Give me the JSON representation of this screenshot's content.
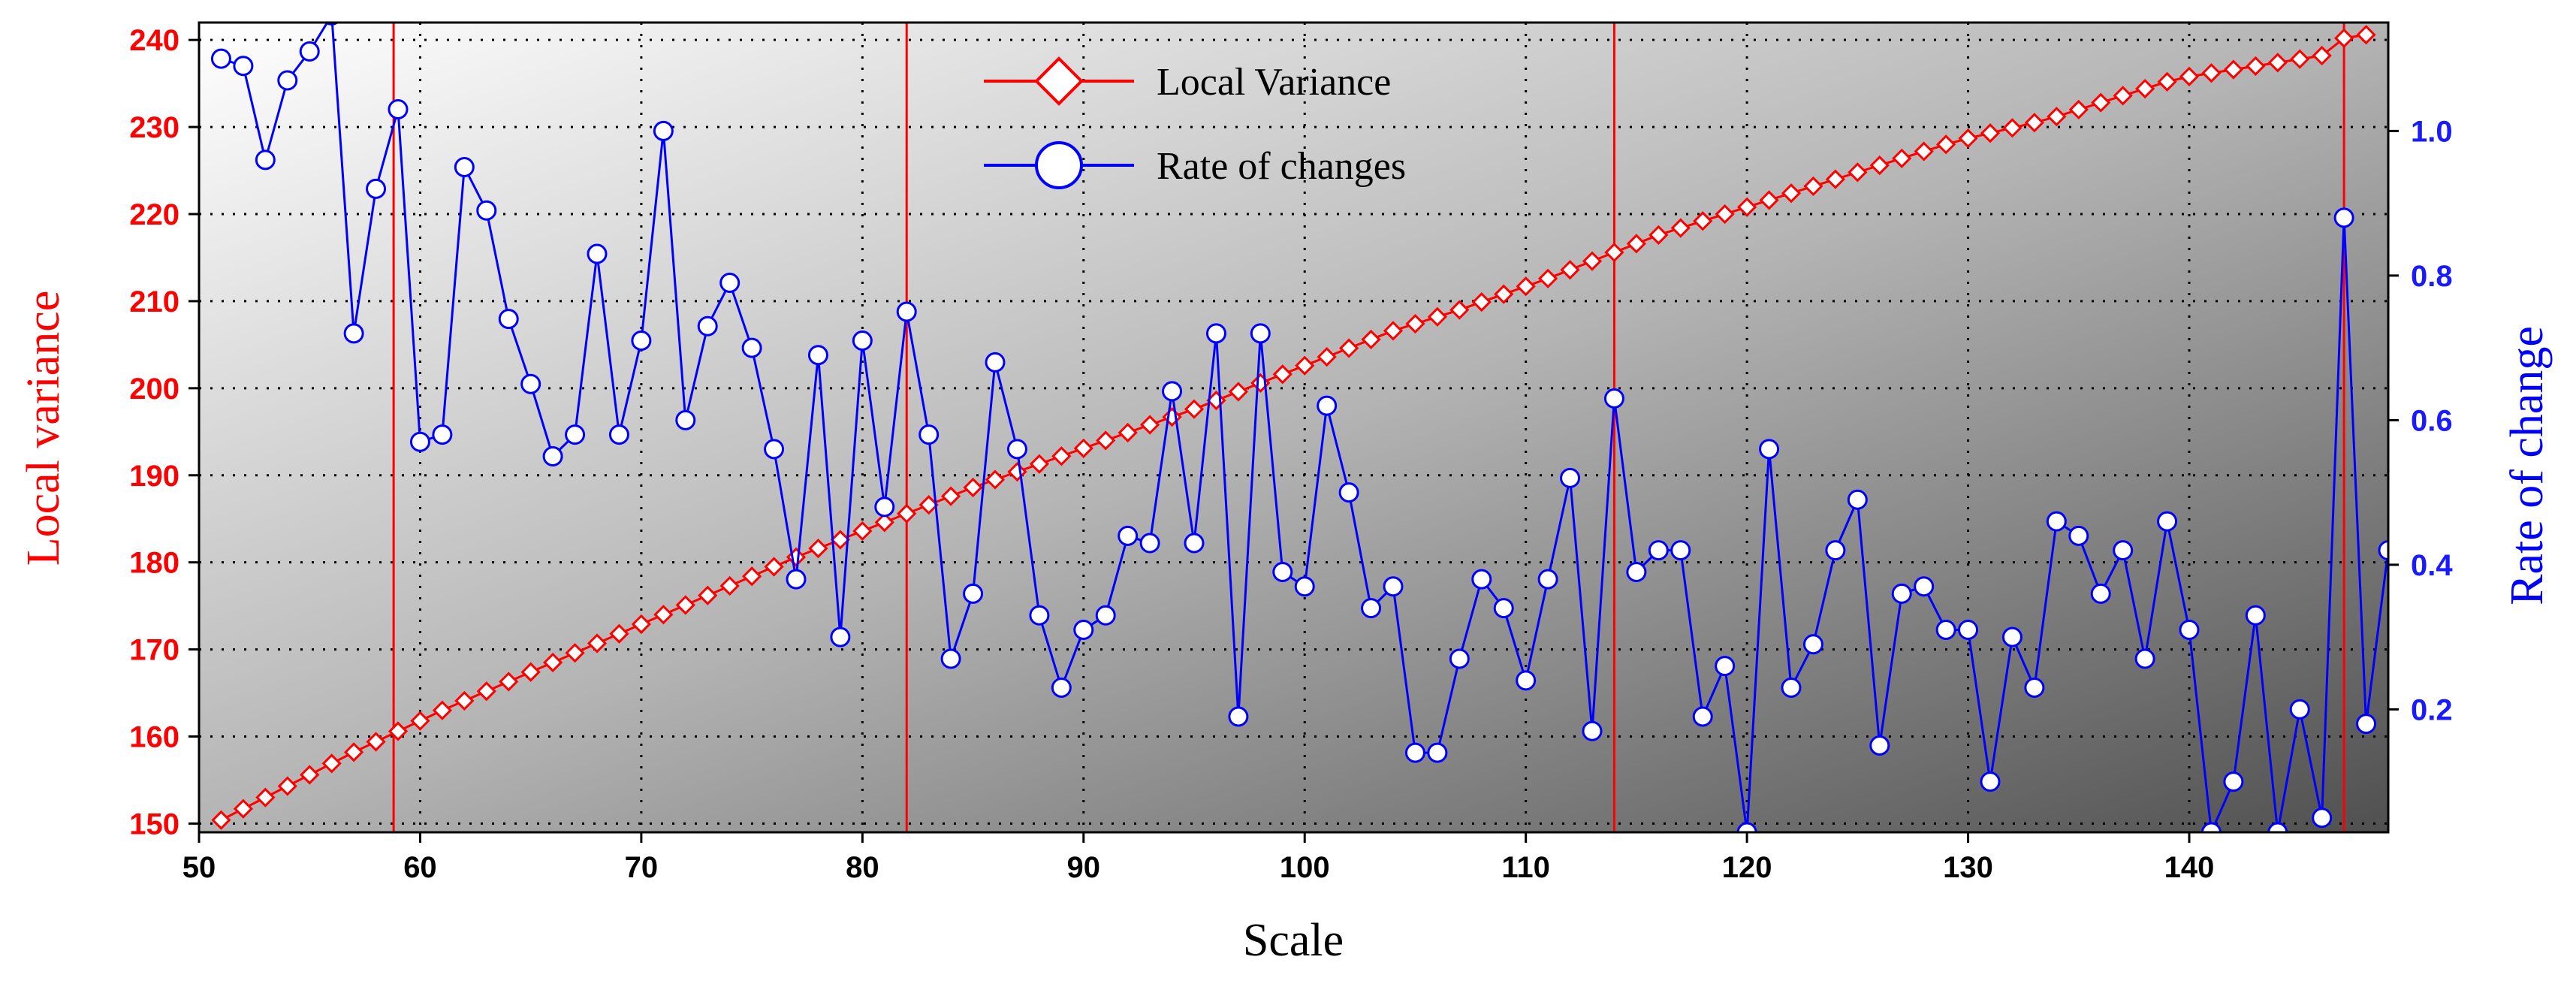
{
  "chart_data": {
    "type": "line",
    "xlabel": "Scale",
    "ylabel_left": "Local variance",
    "ylabel_right": "Rate of change",
    "xlim": [
      50,
      149
    ],
    "ylim_left": [
      149,
      242
    ],
    "ylim_right": [
      0.03,
      1.15
    ],
    "x_ticks": [
      50,
      60,
      70,
      80,
      90,
      100,
      110,
      120,
      130,
      140
    ],
    "y_left_ticks": [
      150,
      160,
      170,
      180,
      190,
      200,
      210,
      220,
      230,
      240
    ],
    "y_right_ticks": [
      0.2,
      0.4,
      0.6,
      0.8,
      1.0
    ],
    "y_right_tick_labels": [
      "0.2",
      "0.4",
      "0.6",
      "0.8",
      "1.0"
    ],
    "grid": true,
    "legend_position": "top-center",
    "vertical_lines": [
      58.8,
      82,
      114,
      147
    ],
    "colors": {
      "local_variance": "#ff0000",
      "rate_of_change": "#0000ff",
      "vertical_lines": "#ff0000"
    },
    "series": [
      {
        "name": "Local Variance",
        "axis": "left",
        "marker": "diamond",
        "x": [
          51,
          52,
          53,
          54,
          55,
          56,
          57,
          58,
          59,
          60,
          61,
          62,
          63,
          64,
          65,
          66,
          67,
          68,
          69,
          70,
          71,
          72,
          73,
          74,
          75,
          76,
          77,
          78,
          79,
          80,
          81,
          82,
          83,
          84,
          85,
          86,
          87,
          88,
          89,
          90,
          91,
          92,
          93,
          94,
          95,
          96,
          97,
          98,
          99,
          100,
          101,
          102,
          103,
          104,
          105,
          106,
          107,
          108,
          109,
          110,
          111,
          112,
          113,
          114,
          115,
          116,
          117,
          118,
          119,
          120,
          121,
          122,
          123,
          124,
          125,
          126,
          127,
          128,
          129,
          130,
          131,
          132,
          133,
          134,
          135,
          136,
          137,
          138,
          139,
          140,
          141,
          142,
          143,
          144,
          145,
          146,
          147,
          148
        ],
        "y": [
          150.4,
          151.7,
          153.0,
          154.3,
          155.6,
          156.9,
          158.2,
          159.4,
          160.6,
          161.8,
          163.0,
          164.1,
          165.2,
          166.3,
          167.4,
          168.5,
          169.6,
          170.7,
          171.8,
          172.9,
          174.0,
          175.1,
          176.2,
          177.3,
          178.4,
          179.5,
          180.6,
          181.6,
          182.6,
          183.6,
          184.6,
          185.6,
          186.6,
          187.6,
          188.6,
          189.5,
          190.4,
          191.3,
          192.2,
          193.1,
          194.0,
          194.9,
          195.8,
          196.7,
          197.6,
          198.6,
          199.6,
          200.6,
          201.6,
          202.6,
          203.6,
          204.6,
          205.6,
          206.6,
          207.4,
          208.2,
          209.0,
          209.9,
          210.8,
          211.7,
          212.6,
          213.6,
          214.6,
          215.6,
          216.6,
          217.6,
          218.4,
          219.2,
          220.0,
          220.8,
          221.6,
          222.4,
          223.2,
          224.0,
          224.8,
          225.6,
          226.4,
          227.2,
          228.0,
          228.7,
          229.3,
          229.9,
          230.5,
          231.2,
          232.0,
          232.8,
          233.6,
          234.4,
          235.2,
          235.8,
          236.2,
          236.6,
          237.0,
          237.4,
          237.8,
          238.2,
          240.2,
          240.6
        ]
      },
      {
        "name": "Rate of changes",
        "axis": "right",
        "marker": "circle",
        "x": [
          51,
          52,
          53,
          54,
          55,
          56,
          57,
          58,
          59,
          60,
          61,
          62,
          63,
          64,
          65,
          66,
          67,
          68,
          69,
          70,
          71,
          72,
          73,
          74,
          75,
          76,
          77,
          78,
          79,
          80,
          81,
          82,
          83,
          84,
          85,
          86,
          87,
          88,
          89,
          90,
          91,
          92,
          93,
          94,
          95,
          96,
          97,
          98,
          99,
          100,
          101,
          102,
          103,
          104,
          105,
          106,
          107,
          108,
          109,
          110,
          111,
          112,
          113,
          114,
          115,
          116,
          117,
          118,
          119,
          120,
          121,
          122,
          123,
          124,
          125,
          126,
          127,
          128,
          129,
          130,
          131,
          132,
          133,
          134,
          135,
          136,
          137,
          138,
          139,
          140,
          141,
          142,
          143,
          144,
          145,
          146,
          147,
          148,
          149
        ],
        "y": [
          1.1,
          1.09,
          0.96,
          1.07,
          1.11,
          1.16,
          0.72,
          0.92,
          1.03,
          0.57,
          0.58,
          0.95,
          0.89,
          0.74,
          0.65,
          0.55,
          0.58,
          0.83,
          0.58,
          0.71,
          1.0,
          0.6,
          0.73,
          0.79,
          0.7,
          0.56,
          0.38,
          0.69,
          0.3,
          0.71,
          0.48,
          0.75,
          0.58,
          0.27,
          0.36,
          0.68,
          0.56,
          0.33,
          0.23,
          0.31,
          0.33,
          0.44,
          0.43,
          0.64,
          0.43,
          0.72,
          0.19,
          0.72,
          0.39,
          0.37,
          0.62,
          0.5,
          0.34,
          0.37,
          0.14,
          0.14,
          0.27,
          0.38,
          0.34,
          0.24,
          0.38,
          0.52,
          0.17,
          0.63,
          0.39,
          0.42,
          0.42,
          0.19,
          0.26,
          0.03,
          0.56,
          0.23,
          0.29,
          0.42,
          0.49,
          0.15,
          0.36,
          0.37,
          0.31,
          0.31,
          0.1,
          0.3,
          0.23,
          0.46,
          0.44,
          0.36,
          0.42,
          0.27,
          0.46,
          0.31,
          0.03,
          0.1,
          0.33,
          0.03,
          0.2,
          0.05,
          0.88,
          0.18,
          0.42
        ]
      }
    ]
  }
}
